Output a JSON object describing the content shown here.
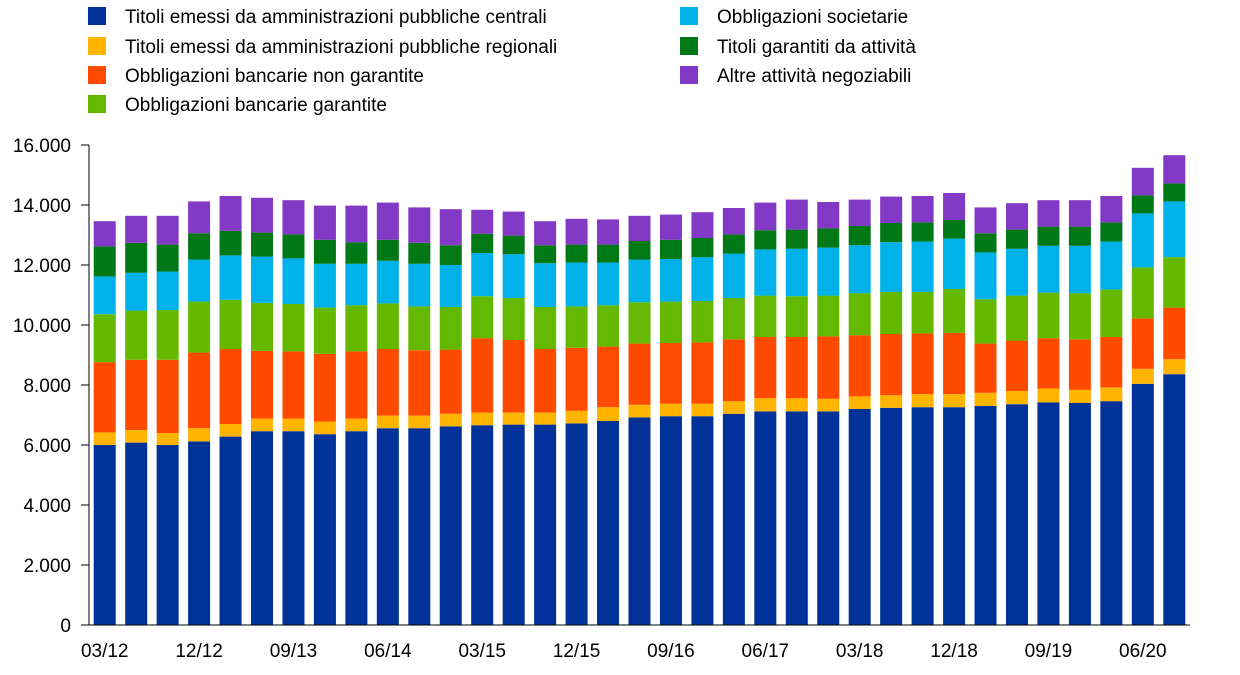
{
  "chart_data": {
    "type": "bar",
    "stacked": true,
    "title": "",
    "xlabel": "",
    "ylabel": "",
    "ylim": [
      0,
      16000
    ],
    "yticks": [
      0,
      2000,
      4000,
      6000,
      8000,
      10000,
      12000,
      14000,
      16000
    ],
    "ytick_labels": [
      "0",
      "2.000",
      "4.000",
      "6.000",
      "8.000",
      "10.000",
      "12.000",
      "14.000",
      "16.000"
    ],
    "grid": false,
    "legend_placement": "top",
    "categories": [
      "03/12",
      "06/12",
      "09/12",
      "12/12",
      "03/13",
      "06/13",
      "09/13",
      "12/13",
      "03/14",
      "06/14",
      "09/14",
      "12/14",
      "03/15",
      "06/15",
      "09/15",
      "12/15",
      "03/16",
      "06/16",
      "09/16",
      "12/16",
      "03/17",
      "06/17",
      "09/17",
      "12/17",
      "03/18",
      "06/18",
      "09/18",
      "12/18",
      "03/19",
      "06/19",
      "09/19",
      "12/19",
      "03/20",
      "06/20",
      "09/20"
    ],
    "xtick_labels": [
      "03/12",
      "12/12",
      "09/13",
      "06/14",
      "03/15",
      "12/15",
      "09/16",
      "06/17",
      "03/18",
      "12/18",
      "09/19",
      "06/20"
    ],
    "series": [
      {
        "name": "Titoli emessi da amministrazioni pubbliche centrali",
        "color": "#003299",
        "values": [
          6000,
          6080,
          6000,
          6120,
          6280,
          6460,
          6460,
          6360,
          6460,
          6560,
          6560,
          6620,
          6660,
          6680,
          6680,
          6720,
          6800,
          6920,
          6960,
          6960,
          7040,
          7120,
          7120,
          7120,
          7200,
          7240,
          7260,
          7260,
          7300,
          7360,
          7420,
          7400,
          7460,
          8040,
          8360
        ]
      },
      {
        "name": "Titoli emessi da amministrazioni pubbliche regionali",
        "color": "#FFB400",
        "values": [
          420,
          420,
          400,
          440,
          420,
          420,
          420,
          420,
          420,
          420,
          420,
          420,
          420,
          400,
          400,
          420,
          460,
          420,
          420,
          420,
          420,
          440,
          440,
          420,
          420,
          420,
          440,
          440,
          440,
          440,
          460,
          440,
          460,
          500,
          500
        ]
      },
      {
        "name": "Obbligazioni bancarie non garantite",
        "color": "#FF4B00",
        "values": [
          2340,
          2340,
          2440,
          2520,
          2500,
          2260,
          2240,
          2260,
          2240,
          2220,
          2180,
          2140,
          2480,
          2420,
          2120,
          2100,
          2020,
          2040,
          2020,
          2040,
          2060,
          2040,
          2040,
          2080,
          2040,
          2040,
          2020,
          2040,
          1640,
          1680,
          1680,
          1680,
          1680,
          1680,
          1720
        ]
      },
      {
        "name": "Obbligazioni bancarie garantite",
        "color": "#65B800",
        "values": [
          1600,
          1640,
          1660,
          1700,
          1640,
          1600,
          1580,
          1540,
          1540,
          1520,
          1460,
          1420,
          1400,
          1400,
          1400,
          1380,
          1380,
          1380,
          1380,
          1380,
          1380,
          1380,
          1360,
          1360,
          1400,
          1400,
          1380,
          1460,
          1480,
          1500,
          1520,
          1540,
          1580,
          1700,
          1680
        ]
      },
      {
        "name": "Obbligazioni societarie",
        "color": "#00B1EA",
        "values": [
          1260,
          1260,
          1280,
          1400,
          1480,
          1540,
          1520,
          1460,
          1380,
          1420,
          1420,
          1400,
          1440,
          1460,
          1460,
          1460,
          1420,
          1420,
          1420,
          1460,
          1480,
          1540,
          1580,
          1600,
          1600,
          1660,
          1680,
          1680,
          1560,
          1560,
          1560,
          1580,
          1600,
          1800,
          1860
        ]
      },
      {
        "name": "Titoli garantiti da attività",
        "color": "#007816",
        "values": [
          1000,
          1000,
          900,
          880,
          820,
          800,
          800,
          800,
          720,
          700,
          700,
          660,
          640,
          620,
          600,
          600,
          600,
          620,
          640,
          640,
          640,
          640,
          640,
          640,
          640,
          640,
          640,
          620,
          640,
          640,
          640,
          640,
          640,
          600,
          600
        ]
      },
      {
        "name": "Altre attività negoziabili",
        "color": "#8139C6",
        "values": [
          840,
          900,
          960,
          1060,
          1160,
          1160,
          1140,
          1140,
          1220,
          1240,
          1180,
          1200,
          800,
          800,
          800,
          860,
          840,
          840,
          840,
          860,
          880,
          920,
          1000,
          880,
          880,
          880,
          880,
          900,
          860,
          880,
          880,
          880,
          880,
          920,
          940
        ]
      }
    ]
  }
}
